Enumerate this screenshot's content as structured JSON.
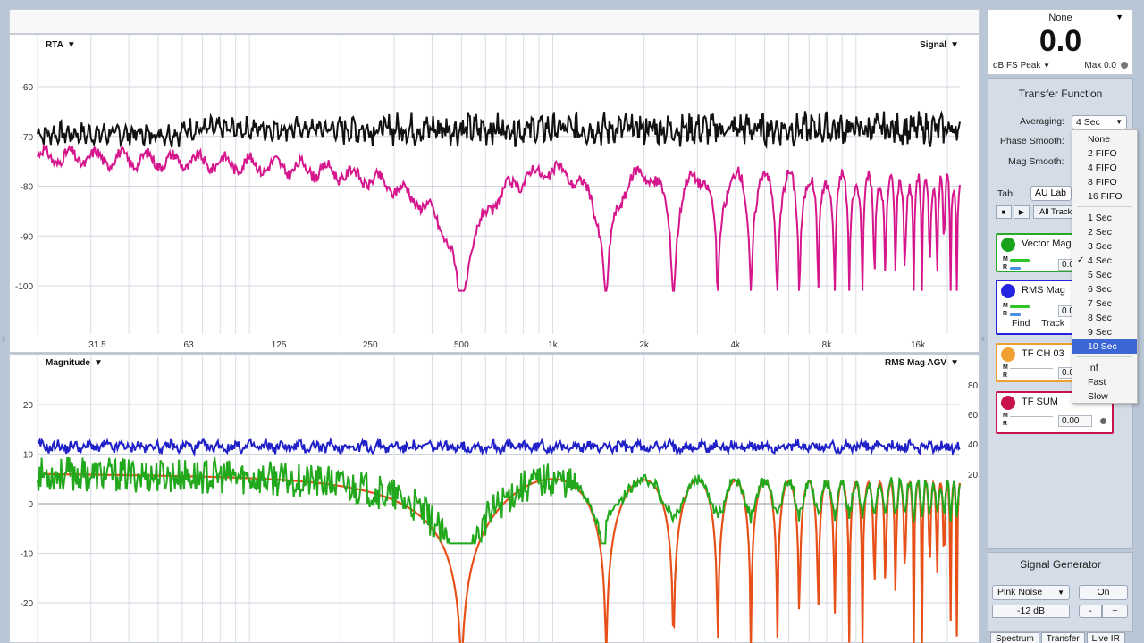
{
  "rta_panel": {
    "left_label": "RTA",
    "right_label": "Signal",
    "y_ticks": [
      "-60",
      "-70",
      "-80",
      "-90",
      "-100"
    ],
    "x_ticks": [
      "31.5",
      "63",
      "125",
      "250",
      "500",
      "1k",
      "2k",
      "4k",
      "8k",
      "16k"
    ]
  },
  "mag_panel": {
    "left_label": "Magnitude",
    "right_label": "RMS Mag AGV",
    "y_ticks_left": [
      "20",
      "10",
      "0",
      "-10",
      "-20"
    ],
    "y_ticks_right": [
      "80",
      "60",
      "40",
      "20"
    ]
  },
  "meter": {
    "channel": "None",
    "value": "0.0",
    "unit": "dB FS Peak",
    "max": "Max 0.0"
  },
  "transfer_function": {
    "title": "Transfer Function",
    "averaging_label": "Averaging:",
    "averaging_value": "4 Sec",
    "phase_smooth_label": "Phase Smooth:",
    "mag_smooth_label": "Mag Smooth:",
    "tab_label": "Tab:",
    "tab_value": "AU Lab",
    "all_tracks": "All Tracks",
    "tracks": [
      {
        "name": "Vector Mag",
        "value": "0.00",
        "color": "#1aa31a"
      },
      {
        "name": "RMS Mag",
        "value": "0.00",
        "color": "#2424e0",
        "extra": "Find Track"
      },
      {
        "name": "TF CH 03",
        "value": "0.00",
        "color": "#f0a030"
      },
      {
        "name": "TF SUM",
        "value": "0.00",
        "color": "#c8144c"
      }
    ]
  },
  "averaging_menu": {
    "items": [
      "None",
      "2 FIFO",
      "4 FIFO",
      "8 FIFO",
      "16 FIFO",
      "1 Sec",
      "2 Sec",
      "3 Sec",
      "4 Sec",
      "5 Sec",
      "6 Sec",
      "7 Sec",
      "8 Sec",
      "9 Sec",
      "10 Sec",
      "Inf",
      "Fast",
      "Slow"
    ],
    "checked": "4 Sec",
    "highlighted": "10 Sec"
  },
  "signal_generator": {
    "title": "Signal Generator",
    "source": "Pink Noise",
    "on_label": "On",
    "level": "-12 dB",
    "minus": "-",
    "plus": "+"
  },
  "bottom_tabs": [
    "Spectrum",
    "Transfer",
    "Live IR"
  ],
  "colors": {
    "signal_black": "#111111",
    "rta_magenta": "#d6168c",
    "rms_blue": "#2020c8",
    "vector_green": "#22a81c",
    "model_orange": "#e8501a"
  }
}
